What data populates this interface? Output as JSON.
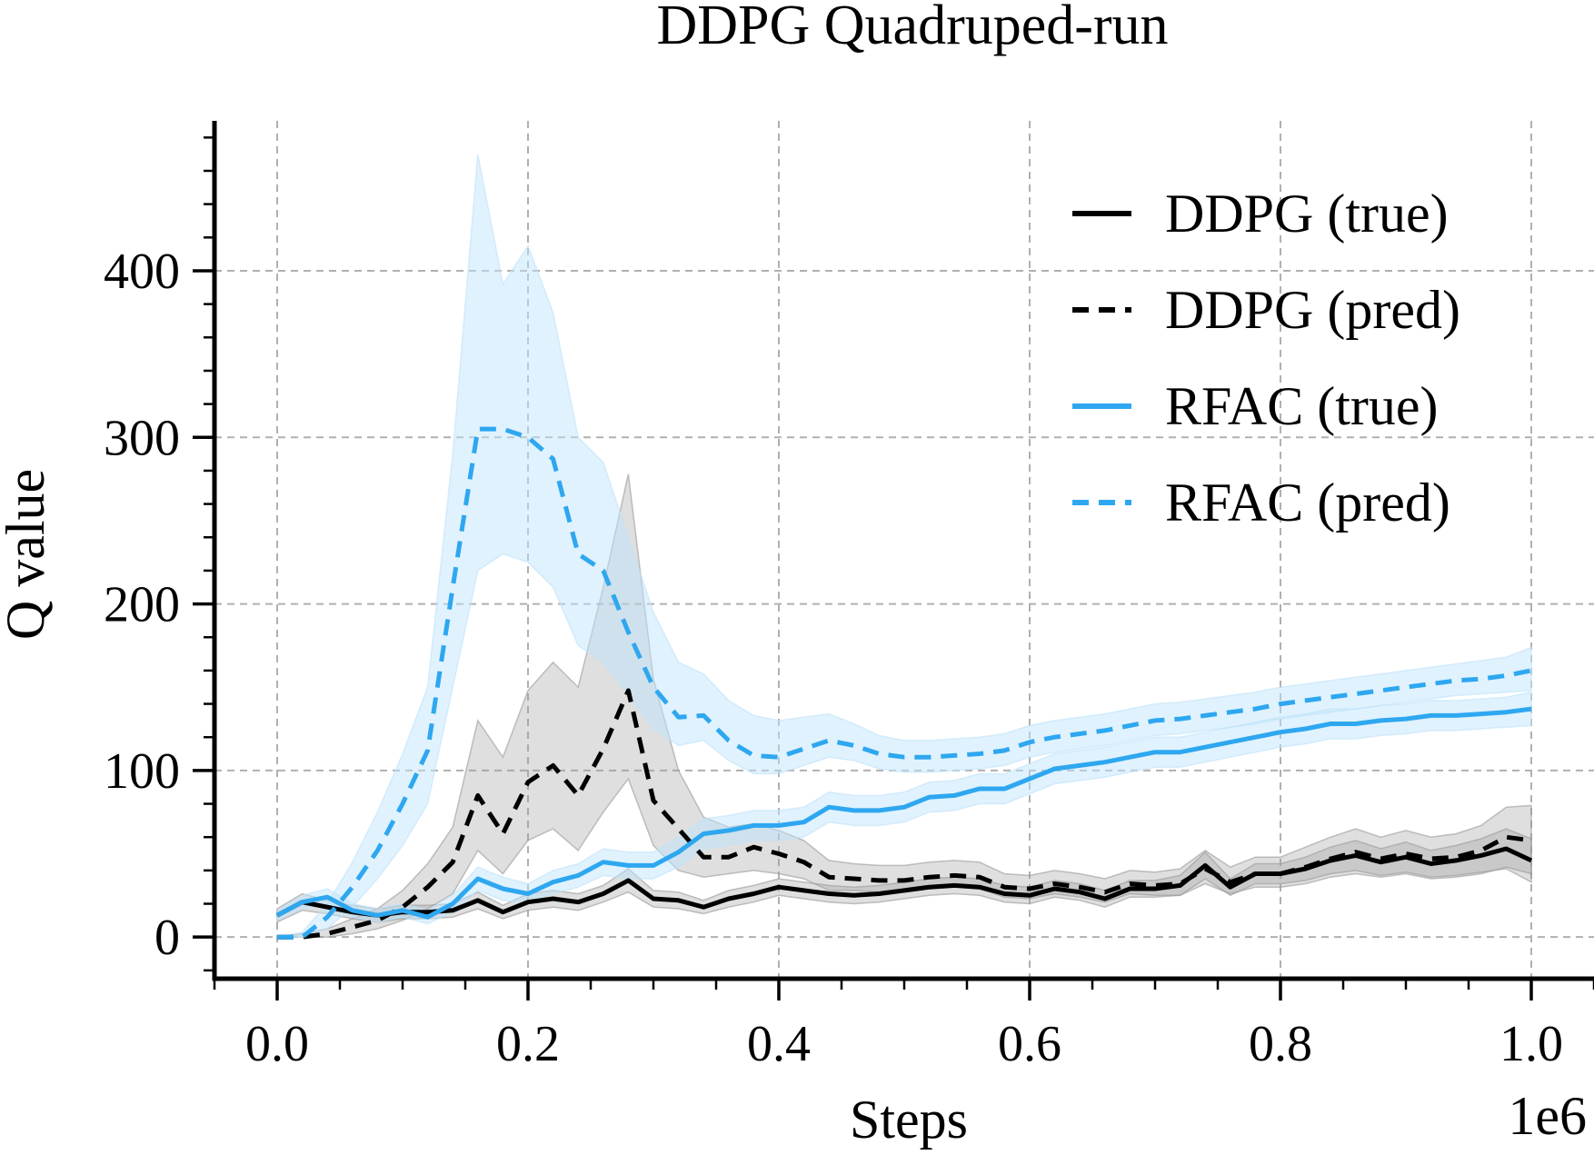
{
  "chart_data": {
    "type": "line",
    "title": "DDPG Quadruped-run",
    "xlabel": "Steps",
    "ylabel": "Q value",
    "x_offset_label": "1e6",
    "xlim": [
      -0.05,
      1.05
    ],
    "ylim": [
      -25,
      490
    ],
    "xticks": [
      0.0,
      0.2,
      0.4,
      0.6,
      0.8,
      1.0
    ],
    "xtick_labels": [
      "0.0",
      "0.2",
      "0.4",
      "0.6",
      "0.8",
      "1.0"
    ],
    "yticks": [
      0,
      100,
      200,
      300,
      400
    ],
    "ytick_labels": [
      "0",
      "100",
      "200",
      "300",
      "400"
    ],
    "grid": true,
    "legend_position": "top-right",
    "x": [
      0.0,
      0.02,
      0.04,
      0.06,
      0.08,
      0.1,
      0.12,
      0.14,
      0.16,
      0.18,
      0.2,
      0.22,
      0.24,
      0.26,
      0.28,
      0.3,
      0.32,
      0.34,
      0.36,
      0.38,
      0.4,
      0.42,
      0.44,
      0.46,
      0.48,
      0.5,
      0.52,
      0.54,
      0.56,
      0.58,
      0.6,
      0.62,
      0.64,
      0.66,
      0.68,
      0.7,
      0.72,
      0.74,
      0.76,
      0.78,
      0.8,
      0.82,
      0.84,
      0.86,
      0.88,
      0.9,
      0.92,
      0.94,
      0.96,
      0.98,
      1.0
    ],
    "series": [
      {
        "name": "DDPG (true)",
        "color": "#000000",
        "style": "solid",
        "values": [
          13,
          21,
          18,
          15,
          13,
          15,
          15,
          16,
          22,
          15,
          21,
          23,
          21,
          26,
          34,
          23,
          22,
          18,
          23,
          26,
          30,
          28,
          26,
          25,
          26,
          28,
          30,
          31,
          30,
          26,
          25,
          29,
          27,
          23,
          29,
          29,
          31,
          43,
          30,
          38,
          38,
          41,
          46,
          49,
          45,
          48,
          44,
          46,
          49,
          53,
          46
        ],
        "band_lower": [
          9,
          16,
          14,
          11,
          9,
          11,
          11,
          12,
          17,
          11,
          16,
          18,
          16,
          21,
          27,
          18,
          17,
          14,
          18,
          21,
          25,
          23,
          21,
          20,
          21,
          23,
          25,
          26,
          25,
          21,
          20,
          24,
          22,
          18,
          24,
          24,
          25,
          35,
          25,
          32,
          32,
          34,
          38,
          40,
          37,
          39,
          36,
          37,
          39,
          41,
          33
        ],
        "band_upper": [
          17,
          26,
          22,
          19,
          17,
          19,
          19,
          20,
          27,
          19,
          26,
          28,
          26,
          31,
          41,
          28,
          27,
          22,
          28,
          31,
          35,
          33,
          31,
          30,
          31,
          33,
          35,
          36,
          35,
          31,
          30,
          34,
          32,
          28,
          34,
          34,
          37,
          51,
          35,
          44,
          44,
          48,
          54,
          58,
          53,
          57,
          52,
          55,
          59,
          65,
          59
        ]
      },
      {
        "name": "DDPG (pred)",
        "color": "#000000",
        "style": "dashed",
        "values": [
          0,
          0,
          2,
          6,
          10,
          18,
          30,
          45,
          85,
          62,
          93,
          103,
          85,
          113,
          148,
          82,
          65,
          48,
          48,
          54,
          50,
          45,
          36,
          35,
          34,
          34,
          36,
          37,
          36,
          30,
          29,
          32,
          30,
          27,
          32,
          31,
          32,
          41,
          33,
          38,
          38,
          42,
          47,
          51,
          47,
          50,
          47,
          48,
          52,
          60,
          58
        ],
        "band_lower": [
          0,
          0,
          0,
          2,
          5,
          10,
          17,
          26,
          52,
          38,
          58,
          65,
          52,
          75,
          95,
          55,
          40,
          36,
          38,
          40,
          38,
          35,
          28,
          28,
          27,
          27,
          29,
          30,
          29,
          24,
          23,
          26,
          24,
          21,
          26,
          25,
          25,
          32,
          26,
          30,
          30,
          32,
          36,
          38,
          36,
          38,
          35,
          36,
          38,
          42,
          38
        ],
        "band_upper": [
          0,
          2,
          5,
          11,
          17,
          28,
          44,
          66,
          130,
          108,
          148,
          165,
          150,
          210,
          278,
          155,
          100,
          72,
          66,
          68,
          64,
          58,
          46,
          44,
          43,
          43,
          45,
          46,
          45,
          38,
          37,
          40,
          38,
          35,
          40,
          39,
          41,
          52,
          42,
          48,
          48,
          54,
          60,
          65,
          60,
          64,
          60,
          62,
          67,
          78,
          79
        ]
      },
      {
        "name": "RFAC (true)",
        "color": "#2ea7f0",
        "style": "solid",
        "values": [
          13,
          21,
          24,
          16,
          13,
          16,
          12,
          20,
          35,
          29,
          26,
          33,
          37,
          45,
          43,
          43,
          51,
          62,
          64,
          67,
          67,
          69,
          78,
          76,
          76,
          78,
          84,
          85,
          89,
          89,
          95,
          101,
          103,
          105,
          108,
          111,
          111,
          114,
          117,
          120,
          123,
          125,
          128,
          128,
          130,
          131,
          133,
          133,
          134,
          135,
          137
        ],
        "band_lower": [
          10,
          17,
          19,
          12,
          9,
          12,
          8,
          15,
          28,
          22,
          20,
          26,
          30,
          37,
          35,
          35,
          42,
          53,
          55,
          58,
          58,
          60,
          69,
          67,
          67,
          69,
          75,
          76,
          80,
          80,
          86,
          92,
          94,
          96,
          99,
          102,
          102,
          105,
          108,
          111,
          114,
          116,
          119,
          119,
          121,
          122,
          124,
          124,
          125,
          126,
          127
        ],
        "band_upper": [
          16,
          25,
          29,
          20,
          17,
          20,
          16,
          25,
          42,
          36,
          32,
          40,
          44,
          53,
          51,
          51,
          60,
          71,
          73,
          76,
          76,
          78,
          87,
          85,
          85,
          87,
          93,
          94,
          98,
          98,
          104,
          110,
          112,
          114,
          117,
          120,
          120,
          123,
          126,
          129,
          132,
          134,
          137,
          137,
          139,
          140,
          142,
          142,
          143,
          144,
          147
        ]
      },
      {
        "name": "RFAC (pred)",
        "color": "#2ea7f0",
        "style": "dashed",
        "values": [
          0,
          0,
          12,
          30,
          52,
          80,
          112,
          210,
          305,
          305,
          300,
          287,
          230,
          220,
          183,
          150,
          132,
          133,
          118,
          109,
          108,
          113,
          118,
          115,
          110,
          108,
          108,
          109,
          110,
          112,
          117,
          120,
          122,
          124,
          127,
          130,
          131,
          133,
          135,
          137,
          140,
          142,
          144,
          146,
          148,
          150,
          152,
          154,
          155,
          157,
          160
        ],
        "band_lower": [
          0,
          0,
          5,
          18,
          35,
          55,
          80,
          150,
          220,
          230,
          225,
          210,
          175,
          165,
          145,
          125,
          115,
          118,
          106,
          98,
          98,
          103,
          108,
          106,
          101,
          99,
          99,
          100,
          101,
          103,
          108,
          111,
          113,
          115,
          118,
          121,
          122,
          124,
          126,
          128,
          131,
          133,
          135,
          137,
          139,
          141,
          143,
          145,
          146,
          147,
          148
        ],
        "band_upper": [
          0,
          3,
          20,
          45,
          75,
          110,
          150,
          290,
          470,
          392,
          415,
          375,
          300,
          285,
          240,
          195,
          165,
          158,
          142,
          133,
          130,
          132,
          134,
          128,
          121,
          118,
          118,
          119,
          120,
          122,
          127,
          130,
          132,
          134,
          137,
          140,
          141,
          143,
          145,
          147,
          150,
          152,
          154,
          156,
          158,
          160,
          162,
          164,
          166,
          168,
          174
        ]
      }
    ]
  }
}
